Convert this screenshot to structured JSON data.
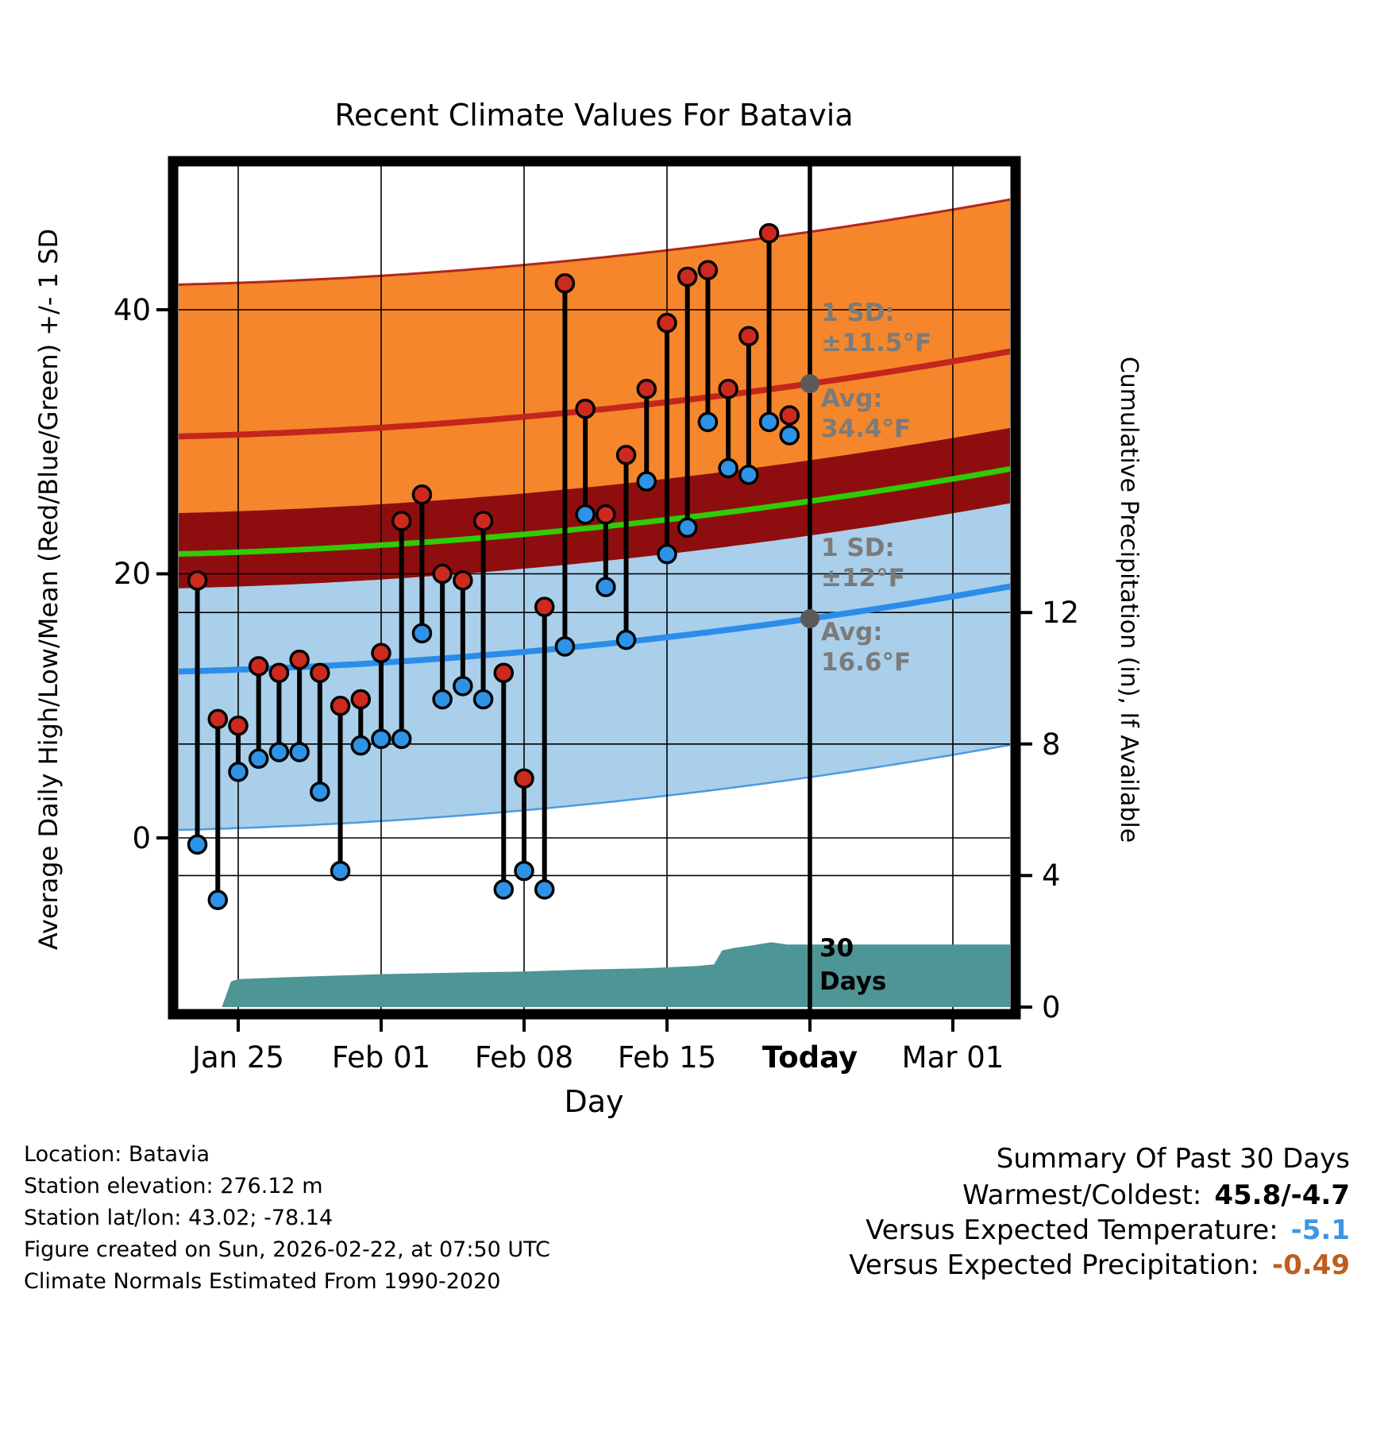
{
  "title": "Recent Climate Values For Batavia",
  "axes": {
    "left_label": "Average Daily High/Low/Mean (Red/Blue/Green) +/- 1 SD",
    "right_label": "Cumulative Precipitation (in), If Available",
    "x_label": "Day",
    "left_tick_labels": [
      "0",
      "20",
      "40"
    ],
    "right_tick_labels": [
      "0",
      "4",
      "8",
      "12"
    ],
    "x_tick_labels": [
      "Jan 25",
      "Feb 01",
      "Feb 08",
      "Feb 15",
      "Today",
      "Mar 01"
    ]
  },
  "annotations": {
    "high_sd_label": "1 SD:",
    "high_sd_value": "±11.5°F",
    "high_avg_label": "Avg:",
    "high_avg_value": "34.4°F",
    "low_sd_label": "1 SD:",
    "low_sd_value": "±12°F",
    "low_avg_label": "Avg:",
    "low_avg_value": "16.6°F",
    "window_line1": "30",
    "window_line2": "Days"
  },
  "footer": {
    "lines": [
      "Location: Batavia",
      "Station elevation: 276.12 m",
      "Station lat/lon: 43.02; -78.14",
      "Figure created on Sun, 2026-02-22, at 07:50 UTC",
      "Climate Normals Estimated From 1990-2020"
    ]
  },
  "summary": {
    "title": "Summary Of Past 30 Days",
    "warmest_label": "Warmest/Coldest:",
    "warmest_value": "45.8/-4.7",
    "temp_label": "Versus Expected Temperature:",
    "temp_value": "-5.1",
    "precip_label": "Versus Expected Precipitation:",
    "precip_value": "-0.49"
  },
  "colors": {
    "high_band": "#F5862B",
    "high_band_edge": "#B2271B",
    "overlap_band": "#8E0E10",
    "low_band": "#A9CFEA",
    "low_band_edge": "#4D9BE0",
    "high_line": "#C3261C",
    "mean_line": "#2FCC05",
    "low_line": "#2B8CEA",
    "high_point": "#CC2A1F",
    "low_point": "#2E93E6",
    "precip_fill": "#4E9596",
    "marker_gray": "#5A5A5A",
    "annotation_gray": "#7B7B7B",
    "summary_temp_color": "#3E97E1",
    "summary_precip_color": "#BF5D1D"
  },
  "chart_data": {
    "type": "line",
    "title": "Recent Climate Values For Batavia",
    "xlabel": "Day",
    "ylabel_left": "Average Daily High/Low/Mean (Red/Blue/Green) +/- 1 SD",
    "ylabel_right": "Cumulative Precipitation (in), If Available",
    "x_tick_labels": [
      "Jan 25",
      "Feb 01",
      "Feb 08",
      "Feb 15",
      "Today",
      "Mar 01"
    ],
    "x_tick_days": [
      0,
      7,
      14,
      21,
      28,
      35
    ],
    "x_range_days": [
      -2.95,
      37.85
    ],
    "today_day": 28,
    "temp_ticks": [
      0,
      20,
      40
    ],
    "precip_ticks": [
      0,
      4,
      8,
      12
    ],
    "temp_gridlines": [
      0,
      20,
      40
    ],
    "precip_gridlines": [
      4,
      8,
      12
    ],
    "legend_position": "none",
    "grid": true,
    "normals": {
      "anchor_days": [
        -3,
        28,
        38
      ],
      "avg_high_anchors": [
        30.4,
        34.4,
        36.9
      ],
      "avg_low_anchors": [
        12.6,
        16.6,
        19.1
      ],
      "sd_high": 11.5,
      "sd_low": 12.0,
      "avg_high_today": 34.4,
      "avg_low_today": 16.6
    },
    "daily": {
      "days": [
        -2,
        -1,
        0,
        1,
        2,
        3,
        4,
        5,
        6,
        7,
        8,
        9,
        10,
        11,
        12,
        13,
        14,
        15,
        16,
        17,
        18,
        19,
        20,
        21,
        22,
        23,
        24,
        25,
        26,
        27
      ],
      "high": [
        19.5,
        9,
        8.5,
        13,
        12.5,
        13.5,
        12.5,
        10,
        10.5,
        14,
        24,
        26,
        20,
        19.5,
        24,
        12.5,
        4.5,
        17.5,
        42,
        32.5,
        24.5,
        29,
        34,
        39,
        42.5,
        43,
        34,
        38,
        45.8,
        32
      ],
      "low": [
        -0.5,
        -4.7,
        5,
        6,
        6.5,
        6.5,
        3.5,
        -2.5,
        7,
        7.5,
        7.5,
        15.5,
        10.5,
        11.5,
        10.5,
        -3.9,
        -2.5,
        -3.9,
        14.5,
        24.5,
        19,
        15,
        27,
        21.5,
        23.5,
        31.5,
        28,
        27.5,
        31.5,
        30.5
      ]
    },
    "precip_cumulative": {
      "days": [
        -0.8,
        -0.35,
        0,
        3,
        7,
        11,
        14,
        17,
        20,
        22.5,
        23.3,
        23.7,
        24.3,
        25.2,
        26.1,
        26.9,
        37.85
      ],
      "values": [
        0,
        0.78,
        0.85,
        0.92,
        1.0,
        1.05,
        1.08,
        1.14,
        1.18,
        1.25,
        1.3,
        1.72,
        1.8,
        1.88,
        1.97,
        1.9,
        1.9
      ]
    }
  }
}
